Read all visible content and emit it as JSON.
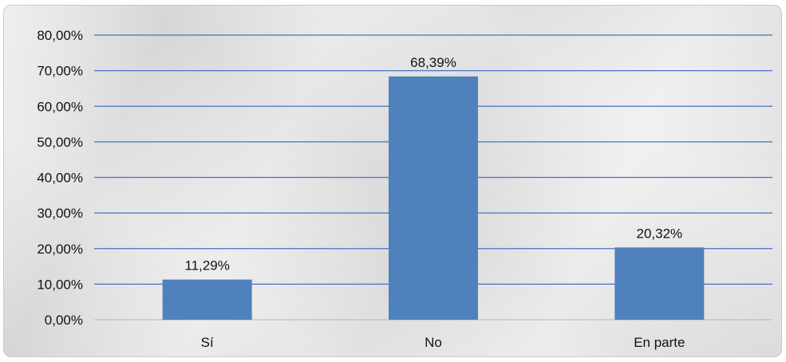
{
  "chart_data": {
    "type": "bar",
    "categories": [
      "Sí",
      "No",
      "En parte"
    ],
    "values": [
      11.29,
      68.39,
      20.32
    ],
    "data_labels": [
      "11,29%",
      "68,39%",
      "20,32%"
    ],
    "ylim": [
      0,
      80
    ],
    "y_ticks": [
      0,
      10,
      20,
      30,
      40,
      50,
      60,
      70,
      80
    ],
    "y_tick_labels": [
      "0,00%",
      "10,00%",
      "20,00%",
      "30,00%",
      "40,00%",
      "50,00%",
      "60,00%",
      "70,00%",
      "80,00%"
    ],
    "grid": true,
    "legend": "none",
    "bar_color": "#4f81bd",
    "grid_color": "#4472c4"
  }
}
